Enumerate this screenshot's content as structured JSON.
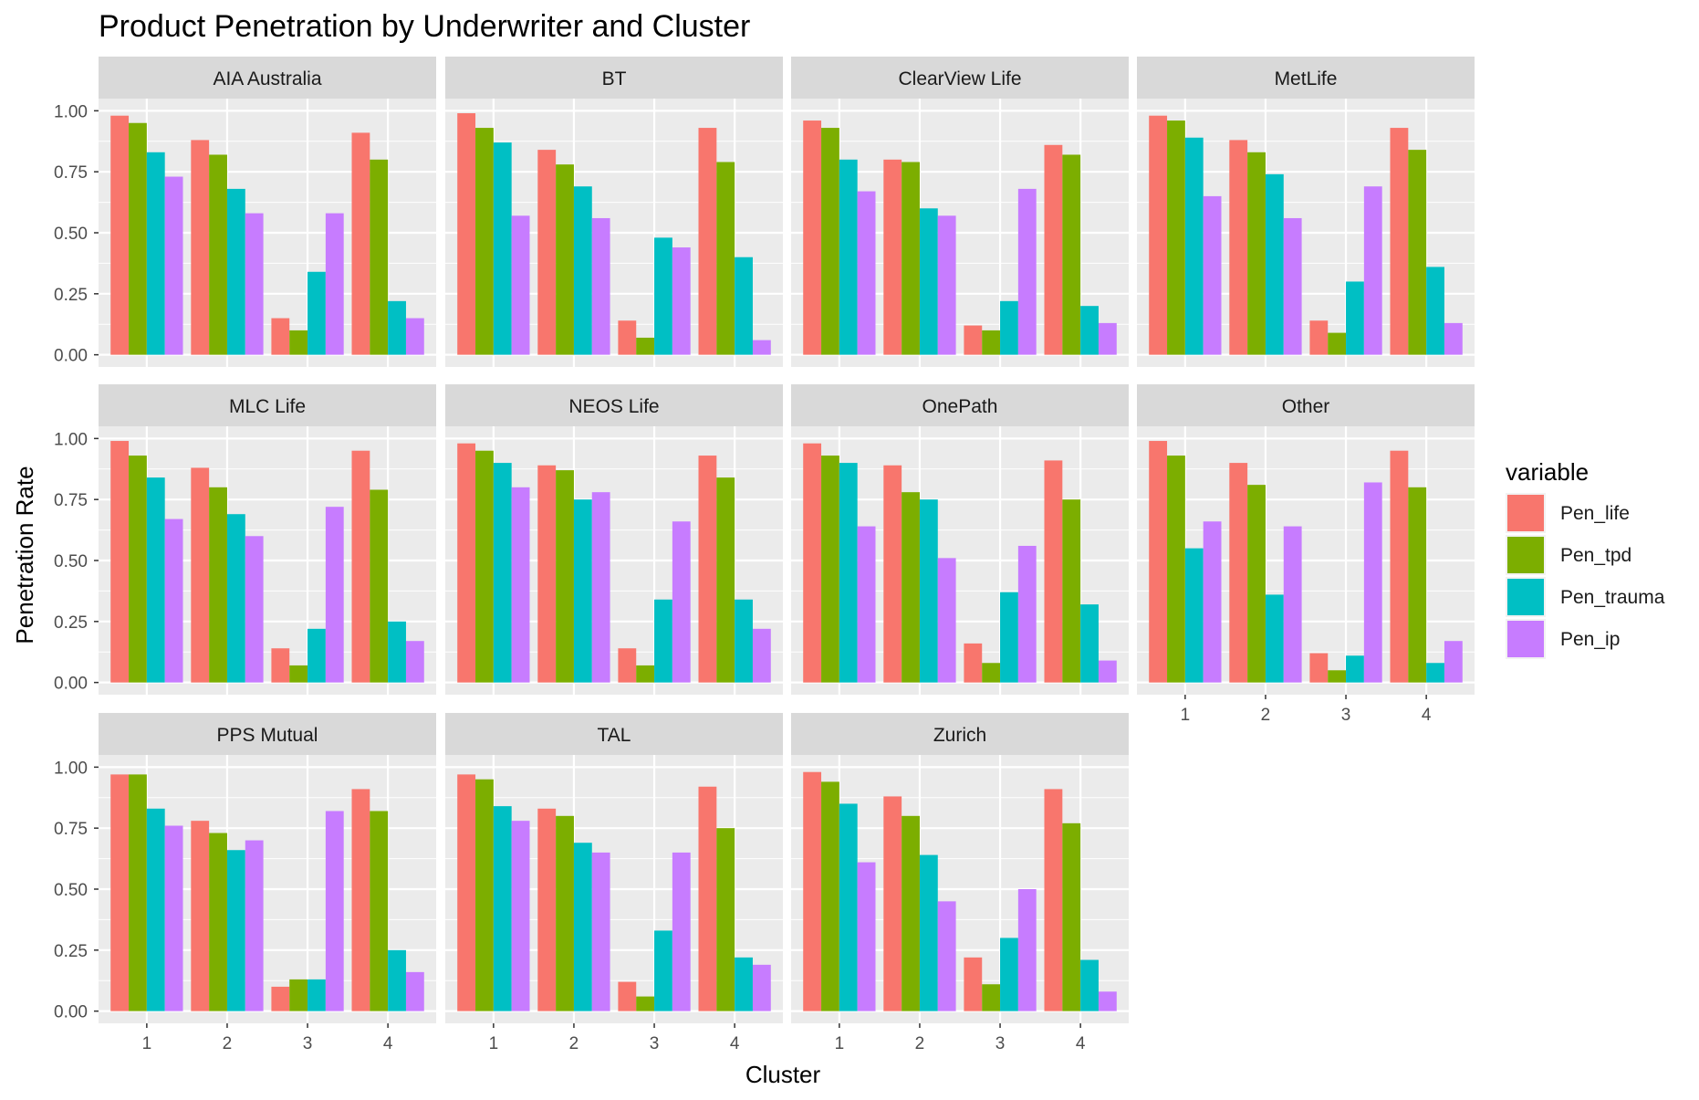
{
  "chart_data": {
    "type": "bar",
    "title": "Product Penetration by Underwriter and Cluster",
    "xlabel": "Cluster",
    "ylabel": "Penetration Rate",
    "categories": [
      "1",
      "2",
      "3",
      "4"
    ],
    "y_ticks": [
      "0.00",
      "0.25",
      "0.50",
      "0.75",
      "1.00"
    ],
    "y_tick_values": [
      0,
      0.25,
      0.5,
      0.75,
      1.0
    ],
    "ylim": [
      0,
      1.0
    ],
    "grid": true,
    "legend": {
      "title": "variable",
      "position": "right",
      "entries": [
        "Pen_life",
        "Pen_tpd",
        "Pen_trauma",
        "Pen_ip"
      ]
    },
    "series_colors": {
      "Pen_life": "#F8766D",
      "Pen_tpd": "#7CAE00",
      "Pen_trauma": "#00BFC4",
      "Pen_ip": "#C77CFF"
    },
    "panels": [
      {
        "name": "AIA Australia",
        "values": {
          "Pen_life": [
            0.98,
            0.88,
            0.15,
            0.91
          ],
          "Pen_tpd": [
            0.95,
            0.82,
            0.1,
            0.8
          ],
          "Pen_trauma": [
            0.83,
            0.68,
            0.34,
            0.22
          ],
          "Pen_ip": [
            0.73,
            0.58,
            0.58,
            0.15
          ]
        }
      },
      {
        "name": "BT",
        "values": {
          "Pen_life": [
            0.99,
            0.84,
            0.14,
            0.93
          ],
          "Pen_tpd": [
            0.93,
            0.78,
            0.07,
            0.79
          ],
          "Pen_trauma": [
            0.87,
            0.69,
            0.48,
            0.4
          ],
          "Pen_ip": [
            0.57,
            0.56,
            0.44,
            0.06
          ]
        }
      },
      {
        "name": "ClearView Life",
        "values": {
          "Pen_life": [
            0.96,
            0.8,
            0.12,
            0.86
          ],
          "Pen_tpd": [
            0.93,
            0.79,
            0.1,
            0.82
          ],
          "Pen_trauma": [
            0.8,
            0.6,
            0.22,
            0.2
          ],
          "Pen_ip": [
            0.67,
            0.57,
            0.68,
            0.13
          ]
        }
      },
      {
        "name": "MetLife",
        "values": {
          "Pen_life": [
            0.98,
            0.88,
            0.14,
            0.93
          ],
          "Pen_tpd": [
            0.96,
            0.83,
            0.09,
            0.84
          ],
          "Pen_trauma": [
            0.89,
            0.74,
            0.3,
            0.36
          ],
          "Pen_ip": [
            0.65,
            0.56,
            0.69,
            0.13
          ]
        }
      },
      {
        "name": "MLC Life",
        "values": {
          "Pen_life": [
            0.99,
            0.88,
            0.14,
            0.95
          ],
          "Pen_tpd": [
            0.93,
            0.8,
            0.07,
            0.79
          ],
          "Pen_trauma": [
            0.84,
            0.69,
            0.22,
            0.25
          ],
          "Pen_ip": [
            0.67,
            0.6,
            0.72,
            0.17
          ]
        }
      },
      {
        "name": "NEOS Life",
        "values": {
          "Pen_life": [
            0.98,
            0.89,
            0.14,
            0.93
          ],
          "Pen_tpd": [
            0.95,
            0.87,
            0.07,
            0.84
          ],
          "Pen_trauma": [
            0.9,
            0.75,
            0.34,
            0.34
          ],
          "Pen_ip": [
            0.8,
            0.78,
            0.66,
            0.22
          ]
        }
      },
      {
        "name": "OnePath",
        "values": {
          "Pen_life": [
            0.98,
            0.89,
            0.16,
            0.91
          ],
          "Pen_tpd": [
            0.93,
            0.78,
            0.08,
            0.75
          ],
          "Pen_trauma": [
            0.9,
            0.75,
            0.37,
            0.32
          ],
          "Pen_ip": [
            0.64,
            0.51,
            0.56,
            0.09
          ]
        }
      },
      {
        "name": "Other",
        "values": {
          "Pen_life": [
            0.99,
            0.9,
            0.12,
            0.95
          ],
          "Pen_tpd": [
            0.93,
            0.81,
            0.05,
            0.8
          ],
          "Pen_trauma": [
            0.55,
            0.36,
            0.11,
            0.08
          ],
          "Pen_ip": [
            0.66,
            0.64,
            0.82,
            0.17
          ]
        }
      },
      {
        "name": "PPS Mutual",
        "values": {
          "Pen_life": [
            0.97,
            0.78,
            0.1,
            0.91
          ],
          "Pen_tpd": [
            0.97,
            0.73,
            0.13,
            0.82
          ],
          "Pen_trauma": [
            0.83,
            0.66,
            0.13,
            0.25
          ],
          "Pen_ip": [
            0.76,
            0.7,
            0.82,
            0.16
          ]
        }
      },
      {
        "name": "TAL",
        "values": {
          "Pen_life": [
            0.97,
            0.83,
            0.12,
            0.92
          ],
          "Pen_tpd": [
            0.95,
            0.8,
            0.06,
            0.75
          ],
          "Pen_trauma": [
            0.84,
            0.69,
            0.33,
            0.22
          ],
          "Pen_ip": [
            0.78,
            0.65,
            0.65,
            0.19
          ]
        }
      },
      {
        "name": "Zurich",
        "values": {
          "Pen_life": [
            0.98,
            0.88,
            0.22,
            0.91
          ],
          "Pen_tpd": [
            0.94,
            0.8,
            0.11,
            0.77
          ],
          "Pen_trauma": [
            0.85,
            0.64,
            0.3,
            0.21
          ],
          "Pen_ip": [
            0.61,
            0.45,
            0.5,
            0.08
          ]
        }
      }
    ]
  }
}
